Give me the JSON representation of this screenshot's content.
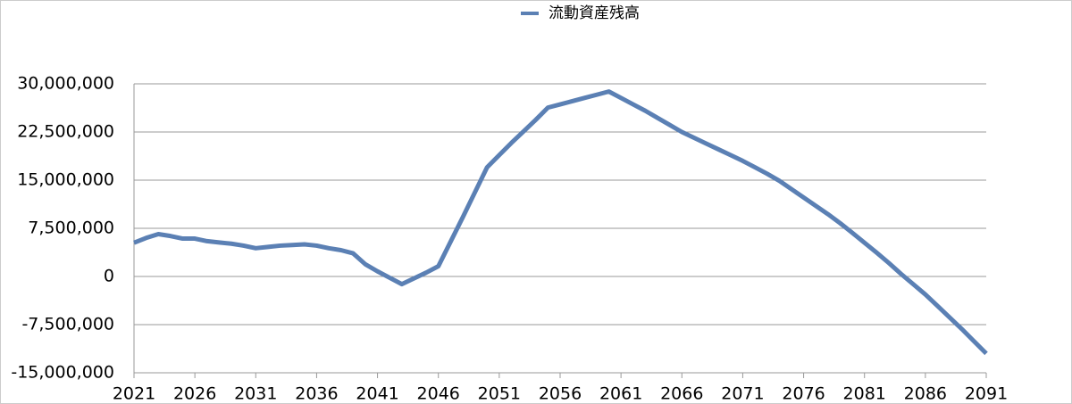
{
  "chart_data": {
    "type": "line",
    "x": [
      2021,
      2022,
      2023,
      2024,
      2025,
      2026,
      2027,
      2028,
      2029,
      2030,
      2031,
      2032,
      2033,
      2034,
      2035,
      2036,
      2037,
      2038,
      2039,
      2040,
      2041,
      2042,
      2043,
      2044,
      2045,
      2046,
      2047,
      2048,
      2049,
      2050,
      2051,
      2052,
      2053,
      2054,
      2055,
      2056,
      2057,
      2058,
      2059,
      2060,
      2061,
      2062,
      2063,
      2064,
      2065,
      2066,
      2067,
      2068,
      2069,
      2070,
      2071,
      2072,
      2073,
      2074,
      2075,
      2076,
      2077,
      2078,
      2079,
      2080,
      2081,
      2082,
      2083,
      2084,
      2085,
      2086,
      2087,
      2088,
      2089,
      2090,
      2091
    ],
    "series": [
      {
        "name": "流動資産残高",
        "color": "#5b80b4",
        "values": [
          5250000,
          6000000,
          6600000,
          6300000,
          5900000,
          5900000,
          5500000,
          5300000,
          5100000,
          4800000,
          4400000,
          4600000,
          4800000,
          4900000,
          5000000,
          4800000,
          4400000,
          4100000,
          3600000,
          1900000,
          800000,
          -200000,
          -1200000,
          -300000,
          600000,
          1600000,
          5400000,
          9200000,
          13100000,
          17000000,
          18900000,
          20800000,
          22600000,
          24400000,
          26300000,
          26800000,
          27300000,
          27800000,
          28300000,
          28800000,
          27800000,
          26800000,
          25800000,
          24700000,
          23600000,
          22500000,
          21600000,
          20700000,
          19800000,
          18900000,
          18000000,
          17000000,
          16000000,
          14900000,
          13600000,
          12300000,
          11000000,
          9700000,
          8300000,
          6800000,
          5250000,
          3700000,
          2100000,
          400000,
          -1200000,
          -2800000,
          -4600000,
          -6400000,
          -8200000,
          -10100000,
          -12000000
        ]
      }
    ],
    "xlim": [
      2021,
      2091
    ],
    "xticks": [
      2021,
      2026,
      2031,
      2036,
      2041,
      2046,
      2051,
      2056,
      2061,
      2066,
      2071,
      2076,
      2081,
      2086,
      2091
    ],
    "ylim": [
      -15000000,
      30000000
    ],
    "yticks": [
      {
        "value": -15000000,
        "label": "-15,000,000"
      },
      {
        "value": -7500000,
        "label": "-7,500,000"
      },
      0,
      {
        "value": 7500000,
        "label": "7,500,000"
      },
      {
        "value": 15000000,
        "label": "15,000,000"
      },
      {
        "value": 22500000,
        "label": "22,500,000"
      },
      {
        "value": 30000000,
        "label": "30,000,000"
      }
    ],
    "grid": true,
    "legend": "top"
  }
}
